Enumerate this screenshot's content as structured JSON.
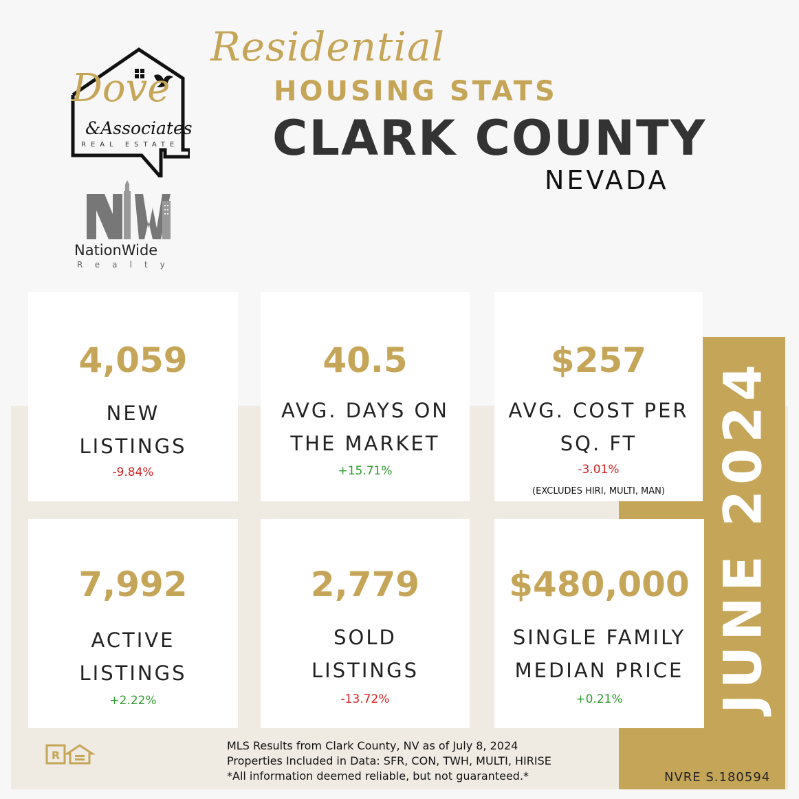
{
  "header": {
    "script_title": "Residential",
    "subtitle": "HOUSING STATS",
    "county": "CLARK COUNTY",
    "state": "NEVADA"
  },
  "logos": {
    "dove": {
      "word": "Dove",
      "associates": "&Associates",
      "tagline": "REAL ESTATE"
    },
    "nationwide": {
      "name": "NationWide",
      "sub": "Realty"
    }
  },
  "month": "JUNE 2024",
  "license": "NVRE S.180594",
  "stats": [
    {
      "value": "4,059",
      "label_line1": "NEW",
      "label_line2": "LISTINGS",
      "change": "-9.84%",
      "trend": "negative"
    },
    {
      "value": "40.5",
      "label_line1": "AVG. DAYS ON",
      "label_line2": "THE MARKET",
      "change": "+15.71%",
      "trend": "positive"
    },
    {
      "value": "$257",
      "label_line1": "AVG. COST PER",
      "label_line2": "SQ. FT",
      "change": "-3.01%",
      "trend": "negative",
      "note": "(EXCLUDES HIRI, MULTI, MAN)"
    },
    {
      "value": "7,992",
      "label_line1": "ACTIVE",
      "label_line2": "LISTINGS",
      "change": "+2.22%",
      "trend": "positive"
    },
    {
      "value": "2,779",
      "label_line1": "SOLD",
      "label_line2": "LISTINGS",
      "change": "-13.72%",
      "trend": "negative"
    },
    {
      "value": "$480,000",
      "label_line1": "SINGLE FAMILY",
      "label_line2": "MEDIAN PRICE",
      "change": "+0.21%",
      "trend": "positive"
    }
  ],
  "footer": {
    "line1": "MLS Results from Clark County, NV as of July 8, 2024",
    "line2": "Properties Included in Data: SFR, CON, TWH, MULTI, HIRISE",
    "line3": "*All information deemed reliable, but not guaranteed.*"
  },
  "colors": {
    "gold": "#c5a658",
    "dark_text": "#333333",
    "negative": "#d42020",
    "positive": "#2e9a2e",
    "beige": "#efebe2"
  },
  "icons": [
    "realtor-icon",
    "equal-housing-icon",
    "dove-bird-icon",
    "house-outline-icon"
  ]
}
